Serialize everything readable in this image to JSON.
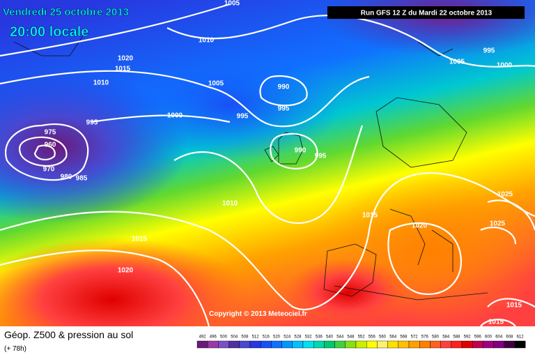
{
  "header": {
    "date": "Vendredi 25 octobre 2013",
    "time": "20:00 locale",
    "run": "Run GFS 12 Z du Mardi 22 octobre 2013"
  },
  "copyright": "Copyright © 2013 Meteociel.fr",
  "isobar_labels": [
    1005,
    1010,
    1020,
    1015,
    1010,
    1005,
    1000,
    995,
    990,
    995,
    995,
    975,
    960,
    970,
    980,
    985,
    990,
    995,
    1010,
    1015,
    1020,
    1005,
    995,
    1000,
    1015,
    1020,
    1025,
    1025,
    1015,
    1015
  ],
  "footer": {
    "title": "Géop. Z500 & pression au sol",
    "lead": "(+ 78h)"
  },
  "legend": {
    "values": [
      492,
      496,
      500,
      504,
      508,
      512,
      516,
      520,
      524,
      528,
      532,
      536,
      540,
      544,
      548,
      552,
      556,
      560,
      564,
      568,
      572,
      576,
      580,
      584,
      588,
      592,
      596,
      600,
      604,
      608,
      612
    ],
    "colors": [
      "#6a1a7a",
      "#9a3aa8",
      "#7a50c8",
      "#5030a0",
      "#4848d0",
      "#2838e0",
      "#1850f8",
      "#1070ff",
      "#0098ff",
      "#00c0ff",
      "#00e0f0",
      "#00d8b0",
      "#00c870",
      "#40d040",
      "#88e010",
      "#c8f000",
      "#ffff00",
      "#fff070",
      "#ffe000",
      "#ffc000",
      "#ffa000",
      "#ff8000",
      "#ff6020",
      "#ff4040",
      "#ff2020",
      "#e00000",
      "#c00050",
      "#a00080",
      "#800080",
      "#400040",
      "#000000"
    ]
  }
}
